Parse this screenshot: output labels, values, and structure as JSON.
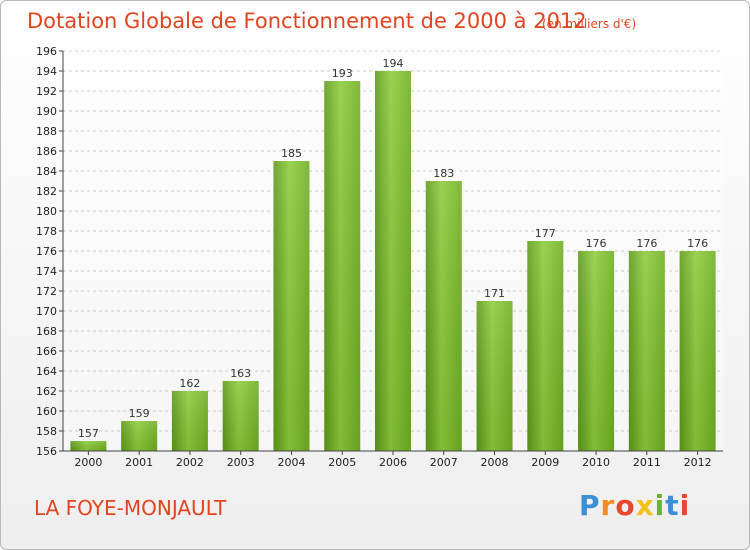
{
  "header": {
    "title": "Dotation Globale de Fonctionnement de 2000 à 2012",
    "unit": "(en milliers d'€)"
  },
  "footer": {
    "commune": "LA FOYE-MONJAULT",
    "brand_letters": [
      "P",
      "r",
      "o",
      "x",
      "i",
      "t",
      "i"
    ],
    "brand_colors": [
      "#3a8fd6",
      "#f28c1e",
      "#e9462f",
      "#f2c21a",
      "#6ab42d",
      "#3a8fd6",
      "#e9462f"
    ]
  },
  "chart_data": {
    "type": "bar",
    "categories": [
      "2000",
      "2001",
      "2002",
      "2003",
      "2004",
      "2005",
      "2006",
      "2007",
      "2008",
      "2009",
      "2010",
      "2011",
      "2012"
    ],
    "values": [
      157,
      159,
      162,
      163,
      185,
      193,
      194,
      183,
      171,
      177,
      176,
      176,
      176
    ],
    "title": "Dotation Globale de Fonctionnement de 2000 à 2012",
    "xlabel": "",
    "ylabel": "",
    "ylim": [
      156,
      196
    ],
    "yticks": [
      156,
      158,
      160,
      162,
      164,
      166,
      168,
      170,
      172,
      174,
      176,
      178,
      180,
      182,
      184,
      186,
      188,
      190,
      192,
      194,
      196
    ],
    "grid": true,
    "bar_color": "#7cbb2c"
  }
}
